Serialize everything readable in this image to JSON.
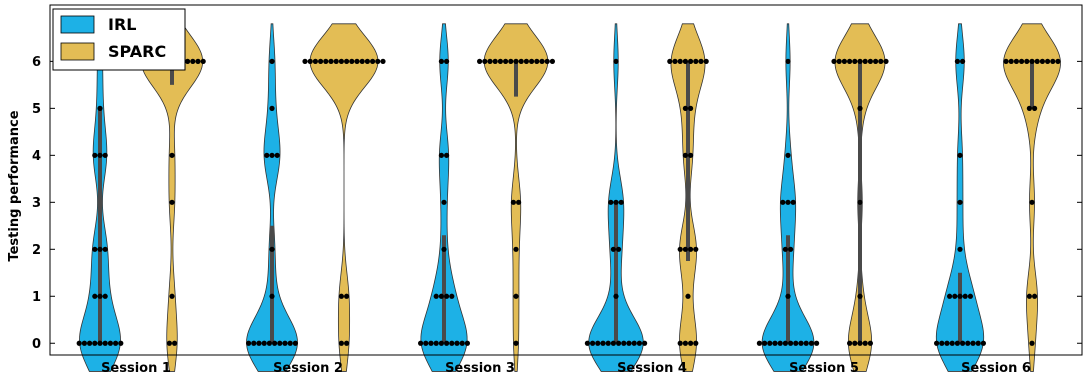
{
  "chart_data": {
    "type": "violin",
    "ylabel": "Testing performance",
    "ylim": [
      -0.25,
      7.2
    ],
    "yticks": [
      0,
      1,
      2,
      3,
      4,
      5,
      6
    ],
    "categories": [
      "Session 1",
      "Session 2",
      "Session 3",
      "Session 4",
      "Session 5",
      "Session 6"
    ],
    "legend": {
      "position": "top-left",
      "entries": [
        "IRL",
        "SPARC"
      ]
    },
    "colors": {
      "IRL": "#1db1e6",
      "SPARC": "#e3bd55",
      "points": "#000000",
      "median_bar": "#4a4a4a"
    },
    "series": [
      {
        "name": "IRL",
        "sessions": [
          {
            "counts": [
              9,
              3,
              3,
              0,
              3,
              1,
              1
            ],
            "q1": 0,
            "q3": 5
          },
          {
            "counts": [
              10,
              1,
              1,
              0,
              3,
              1,
              1
            ],
            "q1": 0,
            "q3": 2.5
          },
          {
            "counts": [
              10,
              4,
              1,
              1,
              2,
              0,
              2
            ],
            "q1": 0,
            "q3": 2.3
          },
          {
            "counts": [
              12,
              1,
              2,
              3,
              0,
              0,
              1
            ],
            "q1": 0,
            "q3": 3
          },
          {
            "counts": [
              12,
              1,
              2,
              3,
              1,
              0,
              1
            ],
            "q1": 0,
            "q3": 2.3
          },
          {
            "counts": [
              10,
              5,
              1,
              1,
              1,
              0,
              2
            ],
            "q1": 0,
            "q3": 1.5
          }
        ]
      },
      {
        "name": "SPARC",
        "sessions": [
          {
            "counts": [
              2,
              1,
              0,
              1,
              1,
              0,
              13
            ],
            "q1": 5.5,
            "q3": 6
          },
          {
            "counts": [
              2,
              2,
              0,
              0,
              0,
              0,
              16
            ],
            "q1": 6,
            "q3": 6
          },
          {
            "counts": [
              1,
              1,
              1,
              2,
              0,
              0,
              15
            ],
            "q1": 5.25,
            "q3": 6
          },
          {
            "counts": [
              4,
              1,
              4,
              0,
              2,
              2,
              8
            ],
            "q1": 1.75,
            "q3": 6
          },
          {
            "counts": [
              5,
              1,
              0,
              1,
              0,
              1,
              11
            ],
            "q1": 0,
            "q3": 6
          },
          {
            "counts": [
              1,
              2,
              0,
              1,
              0,
              2,
              11
            ],
            "q1": 5,
            "q3": 6
          }
        ]
      }
    ]
  }
}
